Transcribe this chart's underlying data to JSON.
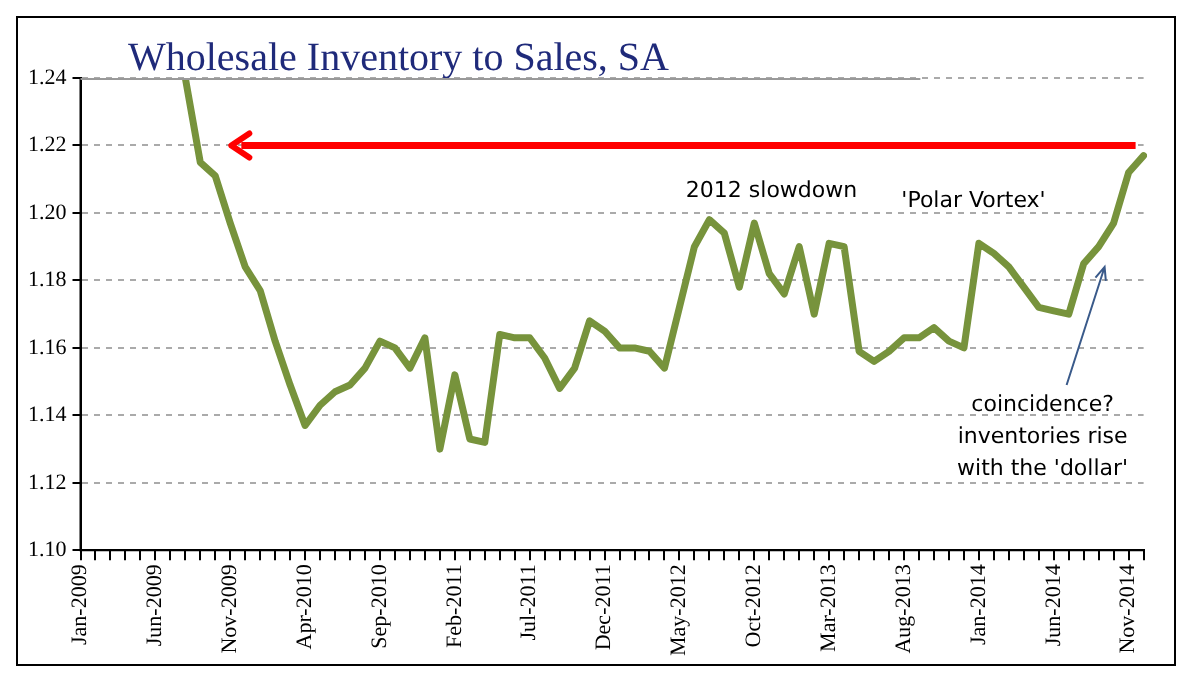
{
  "chart_data": {
    "type": "line",
    "title": "Wholesale Inventory to Sales, SA",
    "categories": [
      "Jan-2009",
      null,
      null,
      null,
      null,
      "Jun-2009",
      null,
      null,
      null,
      null,
      "Nov-2009",
      null,
      null,
      null,
      null,
      "Apr-2010",
      null,
      null,
      null,
      null,
      "Sep-2010",
      null,
      null,
      null,
      null,
      "Feb-2011",
      null,
      null,
      null,
      null,
      "Jul-2011",
      null,
      null,
      null,
      null,
      "Dec-2011",
      null,
      null,
      null,
      null,
      "May-2012",
      null,
      null,
      null,
      null,
      "Oct-2012",
      null,
      null,
      null,
      null,
      "Mar-2013",
      null,
      null,
      null,
      null,
      "Aug-2013",
      null,
      null,
      null,
      null,
      "Jan-2014",
      null,
      null,
      null,
      null,
      "Jun-2014",
      null,
      null,
      null,
      null,
      "Nov-2014",
      null
    ],
    "series": [
      {
        "color": "#77933c",
        "values": [
          null,
          null,
          null,
          null,
          null,
          null,
          null,
          1.24,
          1.215,
          1.211,
          1.197,
          1.184,
          1.177,
          1.162,
          1.149,
          1.137,
          1.143,
          1.147,
          1.149,
          1.154,
          1.162,
          1.16,
          1.154,
          1.163,
          1.13,
          1.152,
          1.133,
          1.132,
          1.164,
          1.163,
          1.163,
          1.157,
          1.148,
          1.154,
          1.168,
          1.165,
          1.16,
          1.16,
          1.159,
          1.154,
          1.172,
          1.19,
          1.198,
          1.194,
          1.178,
          1.197,
          1.182,
          1.176,
          1.19,
          1.17,
          1.191,
          1.19,
          1.159,
          1.156,
          1.159,
          1.163,
          1.163,
          1.166,
          1.162,
          1.16,
          1.191,
          1.188,
          1.184,
          1.178,
          1.172,
          1.171,
          1.17,
          1.185,
          1.19,
          1.197,
          1.212,
          1.217
        ]
      }
    ],
    "ylim": [
      1.1,
      1.24
    ],
    "yticks": [
      {
        "value": 1.1,
        "label": "1.10"
      },
      {
        "value": 1.12,
        "label": "1.12"
      },
      {
        "value": 1.14,
        "label": "1.14"
      },
      {
        "value": 1.16,
        "label": "1.16"
      },
      {
        "value": 1.18,
        "label": "1.18"
      },
      {
        "value": 1.2,
        "label": "1.20"
      },
      {
        "value": 1.22,
        "label": "1.22"
      },
      {
        "value": 1.24,
        "label": "1.24"
      }
    ],
    "grid": "y",
    "legend": false,
    "marker": "none",
    "line_style": "solid",
    "ref_lines": [
      {
        "axis": "y",
        "value": 1.22,
        "color": "#ff0000"
      }
    ],
    "annotations": [
      "2012 slowdown",
      "'Polar Vortex'",
      "coincidence?\ninventories rise\nwith the 'dollar'"
    ]
  }
}
